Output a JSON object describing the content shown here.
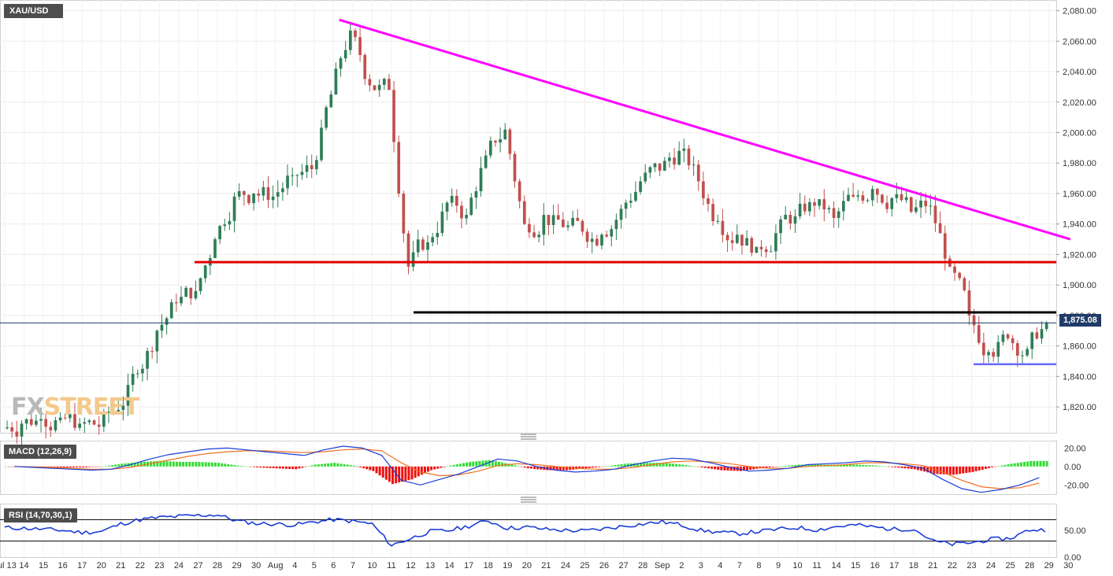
{
  "window": {
    "symbol": "XAU/USD",
    "logo_left": "FX",
    "logo_right": "STREET"
  },
  "panels": {
    "macd": {
      "label": "MACD (12,26,9)",
      "ticks": [
        "20.00",
        "0.00",
        "-20.00"
      ]
    },
    "rsi": {
      "label": "RSI (14,70,30,1)",
      "ticks": [
        "50.00",
        "0.00"
      ]
    }
  },
  "current_price": {
    "label": "1,875.08",
    "value": 1875.08
  },
  "colors": {
    "trendline": "#ff00ff",
    "resistance": "#e00000",
    "support": "#000000",
    "low": "#6666ff",
    "up_candle": "#2e7d57",
    "down_candle": "#c0504d",
    "macd_line": "#1a3dd6",
    "signal_line": "#f07020",
    "hist_pos": "#33dd33",
    "hist_neg": "#ee1111",
    "rsi_line": "#1a3dd6",
    "price_flag": "#1f3b66"
  },
  "chart_data": {
    "type": "candlestick",
    "title": "XAU/USD",
    "ylim": [
      1803,
      2087
    ],
    "y_ticks": [
      "2,080.00",
      "2,060.00",
      "2,040.00",
      "2,020.00",
      "2,000.00",
      "1,980.00",
      "1,960.00",
      "1,940.00",
      "1,920.00",
      "1,900.00",
      "1,880.00",
      "1,860.00",
      "1,840.00",
      "1,820.00"
    ],
    "y_tick_values": [
      2080,
      2060,
      2040,
      2020,
      2000,
      1980,
      1960,
      1940,
      1920,
      1900,
      1880,
      1860,
      1840,
      1820
    ],
    "x_ticks": [
      "Jul 13",
      "14",
      "15",
      "16",
      "17",
      "20",
      "21",
      "22",
      "23",
      "24",
      "27",
      "28",
      "29",
      "30",
      "Aug",
      "4",
      "5",
      "6",
      "7",
      "10",
      "11",
      "12",
      "13",
      "14",
      "17",
      "18",
      "19",
      "20",
      "21",
      "24",
      "25",
      "26",
      "27",
      "28",
      "Sep",
      "2",
      "3",
      "4",
      "7",
      "8",
      "9",
      "10",
      "11",
      "14",
      "15",
      "16",
      "17",
      "18",
      "21",
      "22",
      "23",
      "24",
      "25",
      "28",
      "29",
      "30"
    ],
    "x_tick_index": [
      0,
      1,
      2,
      3,
      4,
      5,
      6,
      7,
      8,
      9,
      10,
      11,
      12,
      13,
      14,
      15,
      16,
      17,
      18,
      19,
      20,
      21,
      22,
      23,
      24,
      25,
      26,
      27,
      28,
      29,
      30,
      31,
      32,
      33,
      34,
      35,
      36,
      37,
      38,
      39,
      40,
      41,
      42,
      43,
      44,
      45,
      46,
      47,
      48,
      49,
      50,
      51,
      52,
      53,
      54,
      55
    ],
    "daily_closes": [
      1809,
      1812,
      1813,
      1809,
      1807,
      1818,
      1842,
      1870,
      1888,
      1896,
      1930,
      1958,
      1960,
      1958,
      1972,
      1976,
      2025,
      2067,
      2031,
      2028,
      1912,
      1928,
      1954,
      1946,
      1985,
      2002,
      1940,
      1946,
      1938,
      1935,
      1933,
      1950,
      1968,
      1975,
      1988,
      1968,
      1942,
      1933,
      1925,
      1934,
      1945,
      1952,
      1944,
      1958,
      1963,
      1957,
      1948,
      1952,
      1912,
      1880,
      1856,
      1865,
      1858,
      1875
    ],
    "levels": [
      {
        "name": "resistance",
        "value": 1915
      },
      {
        "name": "support",
        "value": 1882
      },
      {
        "name": "recent-low",
        "value": 1848
      }
    ],
    "trendline": {
      "from": {
        "day_index": 17.3,
        "value": 2074
      },
      "to": {
        "day_index": 55.1,
        "value": 1930
      }
    },
    "macd": {
      "ylim": [
        -30,
        28
      ],
      "macd": [
        0,
        -1,
        -2,
        -3,
        -4,
        -3,
        2,
        8,
        13,
        16,
        19,
        20,
        18,
        16,
        14,
        12,
        18,
        22,
        20,
        12,
        -15,
        -20,
        -14,
        -8,
        0,
        8,
        6,
        0,
        -4,
        -6,
        -5,
        -3,
        2,
        6,
        9,
        8,
        4,
        -1,
        -5,
        -4,
        -2,
        2,
        3,
        4,
        6,
        5,
        2,
        -2,
        -14,
        -24,
        -28,
        -25,
        -20,
        -12
      ],
      "signal": [
        0,
        -0.5,
        -1,
        -2,
        -3,
        -3,
        -1,
        3,
        7,
        11,
        14,
        16,
        17,
        17,
        16,
        15,
        16,
        18,
        19,
        17,
        4,
        -6,
        -10,
        -9,
        -5,
        1,
        3,
        2,
        0,
        -2,
        -3,
        -3,
        -1,
        2,
        5,
        6,
        5,
        3,
        0,
        -2,
        -2,
        0,
        1,
        2,
        4,
        4,
        3,
        1,
        -6,
        -15,
        -22,
        -24,
        -23,
        -18
      ]
    },
    "rsi": {
      "ylim": [
        0,
        100
      ],
      "upper": 70,
      "lower": 30,
      "values": [
        55,
        54,
        52,
        50,
        46,
        48,
        62,
        70,
        74,
        76,
        78,
        79,
        68,
        63,
        62,
        60,
        66,
        70,
        67,
        62,
        22,
        35,
        48,
        50,
        58,
        68,
        54,
        56,
        52,
        50,
        49,
        53,
        58,
        62,
        66,
        60,
        50,
        46,
        44,
        48,
        52,
        55,
        51,
        57,
        60,
        56,
        52,
        53,
        30,
        24,
        27,
        33,
        35,
        51
      ]
    }
  }
}
